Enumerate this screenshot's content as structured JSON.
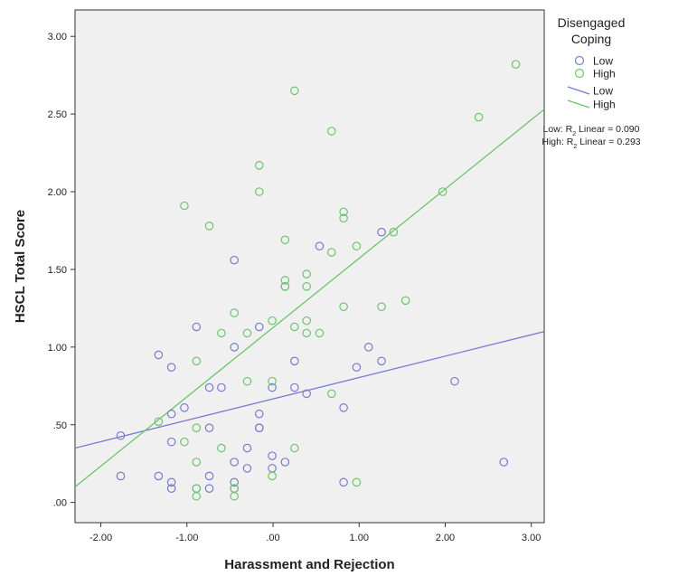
{
  "chart_data": {
    "type": "scatter",
    "xlabel": "Harassment and Rejection",
    "ylabel": "HSCL Total Score",
    "xlim": [
      -2.3,
      3.15
    ],
    "ylim": [
      -0.13,
      3.17
    ],
    "x_ticks": [
      -2,
      -1,
      0,
      1,
      2,
      3
    ],
    "x_tick_labels": [
      "-2.00",
      "-1.00",
      ".00",
      "1.00",
      "2.00",
      "3.00"
    ],
    "y_ticks": [
      0,
      0.5,
      1,
      1.5,
      2,
      2.5,
      3
    ],
    "y_tick_labels": [
      ".00",
      ".50",
      "1.00",
      "1.50",
      "2.00",
      "2.50",
      "3.00"
    ],
    "grid": false,
    "legend": {
      "title": "Disengaged Coping",
      "title_lines": [
        "Disengaged",
        "Coping"
      ],
      "placement": "right"
    },
    "series": [
      {
        "name": "Low",
        "color": "#7a7ad0",
        "fit_label": "Low",
        "r2_label_prefix": "Low: R",
        "r2_label_suffix": " Linear = 0.090",
        "fit_line": [
          [
            -2.3,
            0.35
          ],
          [
            3.15,
            1.1
          ]
        ],
        "points": [
          [
            -1.77,
            0.43
          ],
          [
            -1.77,
            0.17
          ],
          [
            -1.33,
            0.95
          ],
          [
            -1.33,
            0.17
          ],
          [
            -1.18,
            0.87
          ],
          [
            -1.18,
            0.57
          ],
          [
            -1.18,
            0.39
          ],
          [
            -1.18,
            0.13
          ],
          [
            -1.18,
            0.09
          ],
          [
            -1.03,
            0.61
          ],
          [
            -0.89,
            1.13
          ],
          [
            -0.89,
            0.09
          ],
          [
            -0.74,
            0.74
          ],
          [
            -0.74,
            0.48
          ],
          [
            -0.74,
            0.17
          ],
          [
            -0.74,
            0.09
          ],
          [
            -0.6,
            0.74
          ],
          [
            -0.45,
            1.56
          ],
          [
            -0.45,
            1.0
          ],
          [
            -0.45,
            0.26
          ],
          [
            -0.45,
            0.13
          ],
          [
            -0.45,
            0.09
          ],
          [
            -0.3,
            0.35
          ],
          [
            -0.3,
            0.22
          ],
          [
            -0.16,
            1.13
          ],
          [
            -0.16,
            0.57
          ],
          [
            -0.16,
            0.48
          ],
          [
            -0.16,
            0.48
          ],
          [
            -0.01,
            0.74
          ],
          [
            -0.01,
            0.3
          ],
          [
            -0.01,
            0.22
          ],
          [
            0.14,
            1.39
          ],
          [
            0.14,
            0.26
          ],
          [
            0.25,
            0.91
          ],
          [
            0.25,
            0.74
          ],
          [
            0.39,
            0.7
          ],
          [
            0.54,
            1.65
          ],
          [
            0.82,
            0.61
          ],
          [
            0.82,
            0.13
          ],
          [
            0.97,
            0.87
          ],
          [
            1.11,
            1.0
          ],
          [
            1.26,
            1.74
          ],
          [
            1.26,
            0.91
          ],
          [
            2.11,
            0.78
          ],
          [
            2.68,
            0.26
          ]
        ]
      },
      {
        "name": "High",
        "color": "#6cc56c",
        "fit_label": "High",
        "r2_label_prefix": "High: R",
        "r2_label_suffix": " Linear = 0.293",
        "fit_line": [
          [
            -2.3,
            0.1
          ],
          [
            3.15,
            2.53
          ]
        ],
        "points": [
          [
            -1.33,
            0.52
          ],
          [
            -1.03,
            1.91
          ],
          [
            -1.03,
            0.39
          ],
          [
            -0.89,
            0.91
          ],
          [
            -0.89,
            0.48
          ],
          [
            -0.89,
            0.26
          ],
          [
            -0.89,
            0.09
          ],
          [
            -0.89,
            0.04
          ],
          [
            -0.74,
            1.78
          ],
          [
            -0.6,
            1.09
          ],
          [
            -0.6,
            0.35
          ],
          [
            -0.45,
            1.22
          ],
          [
            -0.45,
            0.09
          ],
          [
            -0.45,
            0.04
          ],
          [
            -0.3,
            1.09
          ],
          [
            -0.3,
            0.78
          ],
          [
            -0.16,
            2.17
          ],
          [
            -0.16,
            2.0
          ],
          [
            -0.01,
            1.17
          ],
          [
            -0.01,
            0.78
          ],
          [
            -0.01,
            0.17
          ],
          [
            0.14,
            1.69
          ],
          [
            0.14,
            1.43
          ],
          [
            0.14,
            1.39
          ],
          [
            0.25,
            2.65
          ],
          [
            0.25,
            1.13
          ],
          [
            0.25,
            0.35
          ],
          [
            0.39,
            1.47
          ],
          [
            0.39,
            1.39
          ],
          [
            0.39,
            1.17
          ],
          [
            0.39,
            1.09
          ],
          [
            0.54,
            1.09
          ],
          [
            0.68,
            2.39
          ],
          [
            0.68,
            1.61
          ],
          [
            0.68,
            0.7
          ],
          [
            0.82,
            1.87
          ],
          [
            0.82,
            1.83
          ],
          [
            0.82,
            1.26
          ],
          [
            0.97,
            1.65
          ],
          [
            0.97,
            0.13
          ],
          [
            1.26,
            1.26
          ],
          [
            1.4,
            1.74
          ],
          [
            1.54,
            1.3
          ],
          [
            1.97,
            2.0
          ],
          [
            2.39,
            2.48
          ],
          [
            2.82,
            2.82
          ]
        ]
      }
    ]
  }
}
